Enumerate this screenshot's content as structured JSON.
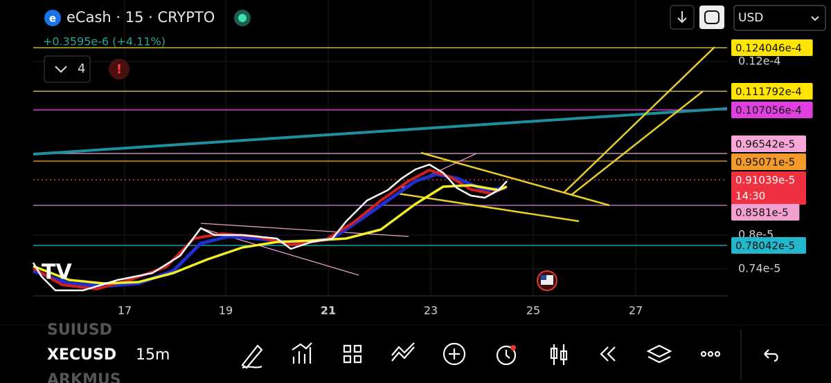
{
  "header": {
    "symbol": "eCash · 15 · CRYPTO",
    "change": "+0.3595e-6 (+4.11%)",
    "indicator_count": "4",
    "currency": "USD"
  },
  "price_axis": {
    "levels": [
      {
        "label": "0.124046e-4",
        "color": "#ffe500"
      },
      {
        "label": "0.111792e-4",
        "color": "#ffe500"
      },
      {
        "label": "0.107056e-4",
        "color": "#e040e0"
      },
      {
        "label": "0.96542e-5",
        "color": "#f7a8d8"
      },
      {
        "label": "0.95071e-5",
        "color": "#f39a2c"
      },
      {
        "label": "0.91039e-5",
        "color": "#ee3040",
        "countdown": "14:30"
      },
      {
        "label": "0.8581e-5",
        "color": "#f2a0cf"
      },
      {
        "label": "0.78042e-5",
        "color": "#22b8cc"
      }
    ],
    "ticks": [
      "0.12e-4",
      "0.8e-5",
      "0.74e-5"
    ]
  },
  "time_axis": {
    "ticks": [
      "17",
      "19",
      "21",
      "23",
      "25",
      "27"
    ]
  },
  "watchlist": [
    "SUIUSD",
    "XECUSD",
    "ARKMUS"
  ],
  "interval": "15m"
}
